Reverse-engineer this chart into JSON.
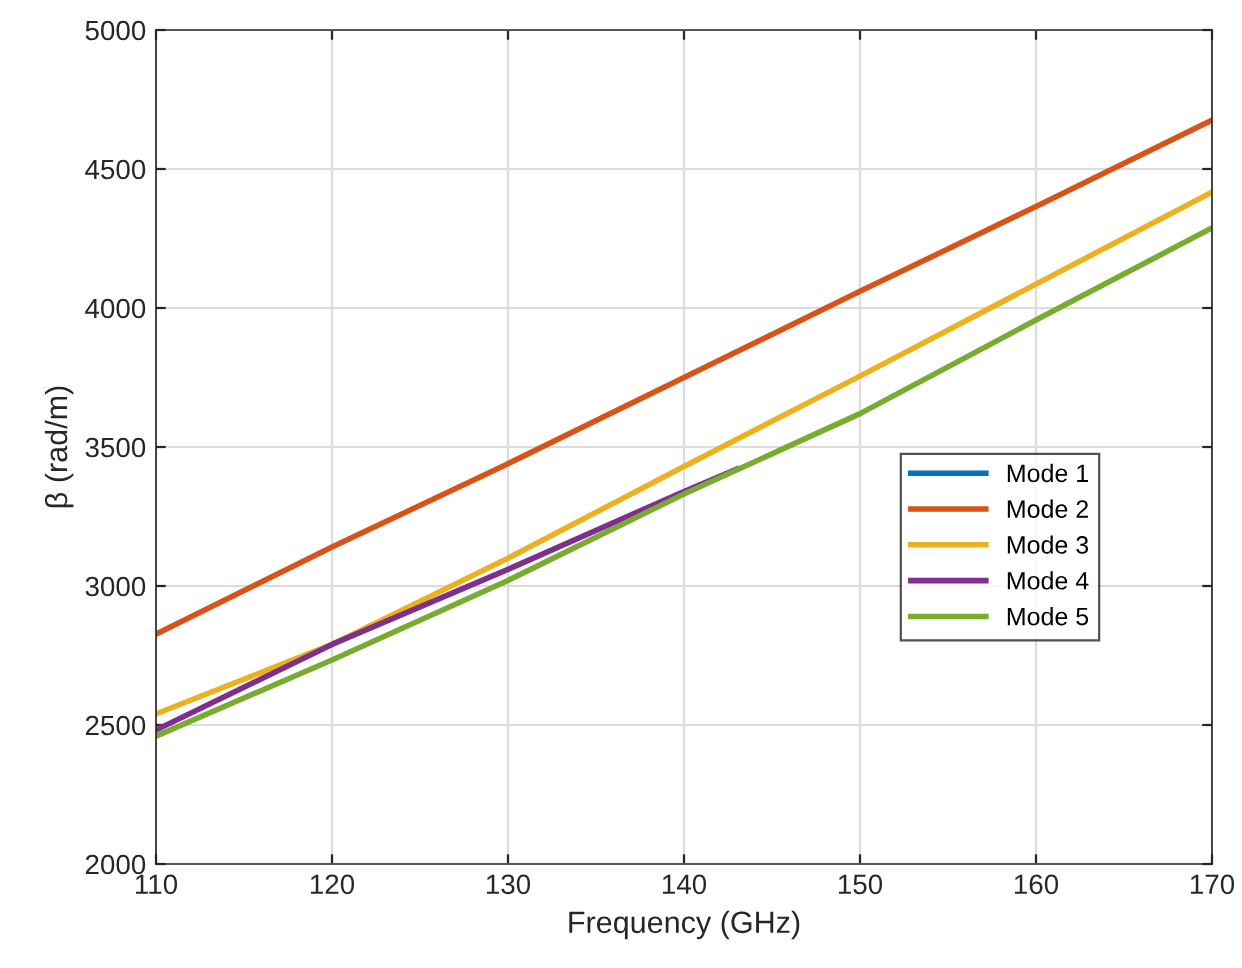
{
  "chart_data": {
    "type": "line",
    "xlabel": "Frequency (GHz)",
    "ylabel": "β (rad/m)",
    "xlim": [
      110,
      170
    ],
    "xticks": [
      110,
      120,
      130,
      140,
      150,
      160,
      170
    ],
    "ylim": [
      2000,
      5000
    ],
    "yticks": [
      2000,
      2500,
      3000,
      3500,
      4000,
      4500,
      5000
    ],
    "grid": true,
    "legend": "right",
    "marker": "none",
    "line_style": "solid",
    "series": [
      {
        "name": "Mode 1",
        "color": "#0072bd"
      },
      {
        "name": "Mode 2",
        "color": "#d95319",
        "x": [
          110,
          120,
          130,
          140,
          150,
          160,
          170
        ],
        "values": [
          2827,
          3140,
          3440,
          3750,
          4060,
          4365,
          4676
        ]
      },
      {
        "name": "Mode 3",
        "color": "#edb120",
        "x": [
          110,
          120,
          130,
          140,
          150,
          160,
          170
        ],
        "values": [
          2540,
          2790,
          3100,
          3430,
          3755,
          4086,
          4417
        ]
      },
      {
        "name": "Mode 4",
        "color": "#7e2f8e",
        "x": [
          110,
          120,
          130,
          140,
          143
        ],
        "values": [
          2482,
          2790,
          3060,
          3340,
          3420
        ]
      },
      {
        "name": "Mode 5",
        "color": "#77ac30",
        "x": [
          110,
          120,
          130,
          140,
          150,
          160,
          170
        ],
        "values": [
          2460,
          2734,
          3020,
          3331,
          3620,
          3957,
          4288
        ]
      }
    ]
  }
}
